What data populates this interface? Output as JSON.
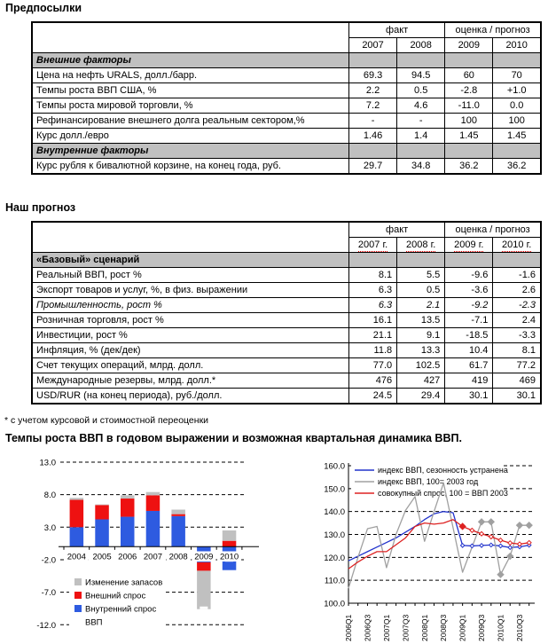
{
  "assumptions_table": {
    "title": "Предпосылки",
    "header": {
      "fact": "факт",
      "forecast": "оценка / прогноз",
      "years": [
        "2007",
        "2008",
        "2009",
        "2010"
      ]
    },
    "rows": [
      {
        "type": "section",
        "label": "Внешние факторы"
      },
      {
        "type": "data",
        "label": "Цена на нефть URALS, долл./барр.",
        "values": [
          "69.3",
          "94.5",
          "60",
          "70"
        ]
      },
      {
        "type": "data",
        "label": "Темпы роста ВВП США, %",
        "values": [
          "2.2",
          "0.5",
          "-2.8",
          "+1.0"
        ]
      },
      {
        "type": "data",
        "label": "Темпы роста мировой торговли, %",
        "values": [
          "7.2",
          "4.6",
          "-11.0",
          "0.0"
        ]
      },
      {
        "type": "data",
        "label": "Рефинансирование внешнего долга реальным сектором,%",
        "values": [
          "-",
          "-",
          "100",
          "100"
        ]
      },
      {
        "type": "data",
        "label": "Курс долл./евро",
        "values": [
          "1.46",
          "1.4",
          "1.45",
          "1.45"
        ]
      },
      {
        "type": "section",
        "label": "Внутренние факторы"
      },
      {
        "type": "data",
        "label": "Курс рубля к бивалютной корзине, на конец года, руб.",
        "values": [
          "29.7",
          "34.8",
          "36.2",
          "36.2"
        ]
      }
    ]
  },
  "forecast_table": {
    "title": "Наш прогноз",
    "header": {
      "fact": "факт",
      "forecast": "оценка / прогноз",
      "years": [
        "2007 г.",
        "2008 г.",
        "2009 г.",
        "2010 г."
      ]
    },
    "rows": [
      {
        "type": "section",
        "label": "«Базовый» сценарий"
      },
      {
        "type": "data",
        "label": "Реальный ВВП, рост %",
        "values": [
          "8.1",
          "5.5",
          "-9.6",
          "-1.6"
        ]
      },
      {
        "type": "data",
        "label": "Экспорт товаров и услуг, %, в физ. выражении",
        "values": [
          "6.3",
          "0.5",
          "-3.6",
          "2.6"
        ]
      },
      {
        "type": "data",
        "label": "Промышленность, рост %",
        "values": [
          "6.3",
          "2.1",
          "-9.2",
          "-2.3"
        ],
        "italic": true
      },
      {
        "type": "data",
        "label": "Розничная торговля, рост %",
        "values": [
          "16.1",
          "13.5",
          "-7.1",
          "2.4"
        ]
      },
      {
        "type": "data",
        "label": "Инвестиции, рост %",
        "values": [
          "21.1",
          "9.1",
          "-18.5",
          "-3.3"
        ]
      },
      {
        "type": "data",
        "label": "Инфляция, % (дек/дек)",
        "values": [
          "11.8",
          "13.3",
          "10.4",
          "8.1"
        ]
      },
      {
        "type": "data",
        "label": "Счет текущих операций, млрд. долл.",
        "values": [
          "77.0",
          "102.5",
          "61.7",
          "77.2"
        ]
      },
      {
        "type": "data",
        "label": "Международные резервы, млрд. долл.*",
        "values": [
          "476",
          "427",
          "419",
          "469"
        ]
      },
      {
        "type": "data",
        "label": "USD/RUR (на конец периода), руб./долл.",
        "values": [
          "24.5",
          "29.4",
          "30.1",
          "30.1"
        ]
      }
    ],
    "footnote": "* с учетом курсовой и стоимостной переоценки"
  },
  "charts_title": "Темпы роста ВВП в годовом выражении и возможная квартальная динамика ВВП.",
  "chart_data": [
    {
      "type": "bar",
      "stacked": true,
      "categories": [
        "2004",
        "2005",
        "2006",
        "2007",
        "2008",
        "2009",
        "2010"
      ],
      "series": [
        {
          "name": "Внутренний спрос",
          "color": "#2e5be0",
          "values": [
            3.0,
            4.2,
            4.6,
            5.5,
            4.7,
            -2.4,
            -3.6
          ]
        },
        {
          "name": "Внешний спрос",
          "color": "#ee1111",
          "values": [
            4.2,
            2.2,
            2.8,
            2.4,
            0.3,
            -1.3,
            0.9
          ]
        },
        {
          "name": "Изменение запасов",
          "color": "#c0c0c0",
          "values": [
            0.3,
            0.1,
            0.5,
            0.5,
            0.7,
            -5.9,
            1.6
          ]
        }
      ],
      "gdp_markers": {
        "name": "ВВП",
        "color": "#ffffff",
        "points": [
          {
            "category": "2009",
            "value": -9.4
          },
          {
            "category": "2010",
            "value": -2.1
          }
        ]
      },
      "yticks": [
        13.0,
        8.0,
        3.0,
        -2.0,
        -7.0,
        -12.0
      ],
      "ytick_labels": [
        "13.0",
        "8.0",
        "3.0",
        "-2.0",
        "-7.0",
        "-12.0"
      ],
      "ylim": [
        -12,
        13
      ],
      "grid": "dashed",
      "legend": [
        {
          "label": "Изменение запасов",
          "color": "#c0c0c0"
        },
        {
          "label": "Внешний спрос",
          "color": "#ee1111"
        },
        {
          "label": "Внутренний спрос",
          "color": "#2e5be0"
        },
        {
          "label": "ВВП",
          "color": "#ffffff"
        }
      ],
      "legend_position": "bottom-left-inside"
    },
    {
      "type": "line",
      "x": [
        "2006Q1",
        "2006Q2",
        "2006Q3",
        "2006Q4",
        "2007Q1",
        "2007Q2",
        "2007Q3",
        "2007Q4",
        "2008Q1",
        "2008Q2",
        "2008Q3",
        "2008Q4",
        "2009Q1",
        "2009Q2",
        "2009Q3",
        "2009Q4",
        "2010Q1",
        "2010Q2",
        "2010Q3",
        "2010Q4"
      ],
      "x_tick_labels": [
        "2006Q1",
        "2006Q3",
        "2007Q1",
        "2007Q3",
        "2008Q1",
        "2008Q3",
        "2009Q1",
        "2009Q3",
        "2010Q1",
        "2010Q3"
      ],
      "ylim": [
        100,
        160
      ],
      "yticks": [
        160.0,
        150.0,
        140.0,
        130.0,
        120.0,
        110.0,
        100.0
      ],
      "ytick_labels": [
        "160.0",
        "150.0",
        "140.0",
        "130.0",
        "120.0",
        "110.0",
        "100.0"
      ],
      "grid": "dashed",
      "legend_position": "top-left-inside",
      "series": [
        {
          "name": "индекс ВВП, сезонность устранена",
          "color": "#2233cc",
          "values": [
            118.5,
            120.5,
            122.5,
            124.5,
            126.5,
            128.5,
            131.0,
            133.5,
            136.5,
            139.0,
            140.0,
            139.5,
            125.2,
            125.0,
            125.2,
            125.4,
            125.0,
            124.3,
            124.6,
            125.3
          ],
          "markers": {
            "indices": [
              12,
              13,
              14,
              15,
              16,
              17,
              18,
              19
            ],
            "shape": "diamond",
            "fill": "#ffffff",
            "size": 2.2
          }
        },
        {
          "name": "индекс ВВП, 100= 2003 год",
          "color": "#a0a0a0",
          "values": [
            106.5,
            120.0,
            132.5,
            133.5,
            115.5,
            130.0,
            140.5,
            146.5,
            127.0,
            140.0,
            152.5,
            133.0,
            113.5,
            124.5,
            135.5,
            135.5,
            112.5,
            120.5,
            134.0,
            134.0
          ],
          "markers": {
            "indices": [
              14,
              15,
              16,
              17,
              18,
              19
            ],
            "shape": "diamond",
            "fill": "#a0a0a0",
            "size": 3.5
          }
        },
        {
          "name": "совокупный спрос, 100 = ВВП 2003",
          "color": "#dd2222",
          "values": [
            115.0,
            118.0,
            120.5,
            122.5,
            122.5,
            125.5,
            128.5,
            133.5,
            135.0,
            134.5,
            135.0,
            136.5,
            133.5,
            131.8,
            130.3,
            129.0,
            127.5,
            126.3,
            125.8,
            126.4
          ],
          "markers": {
            "indices": [
              12
            ],
            "shape": "diamond",
            "fill": "#dd2222",
            "size": 3.5
          },
          "markers2": {
            "indices": [
              13,
              14,
              15,
              16,
              17,
              18,
              19
            ],
            "shape": "diamond",
            "fill": "#ffffff",
            "size": 2.4
          }
        }
      ]
    }
  ]
}
